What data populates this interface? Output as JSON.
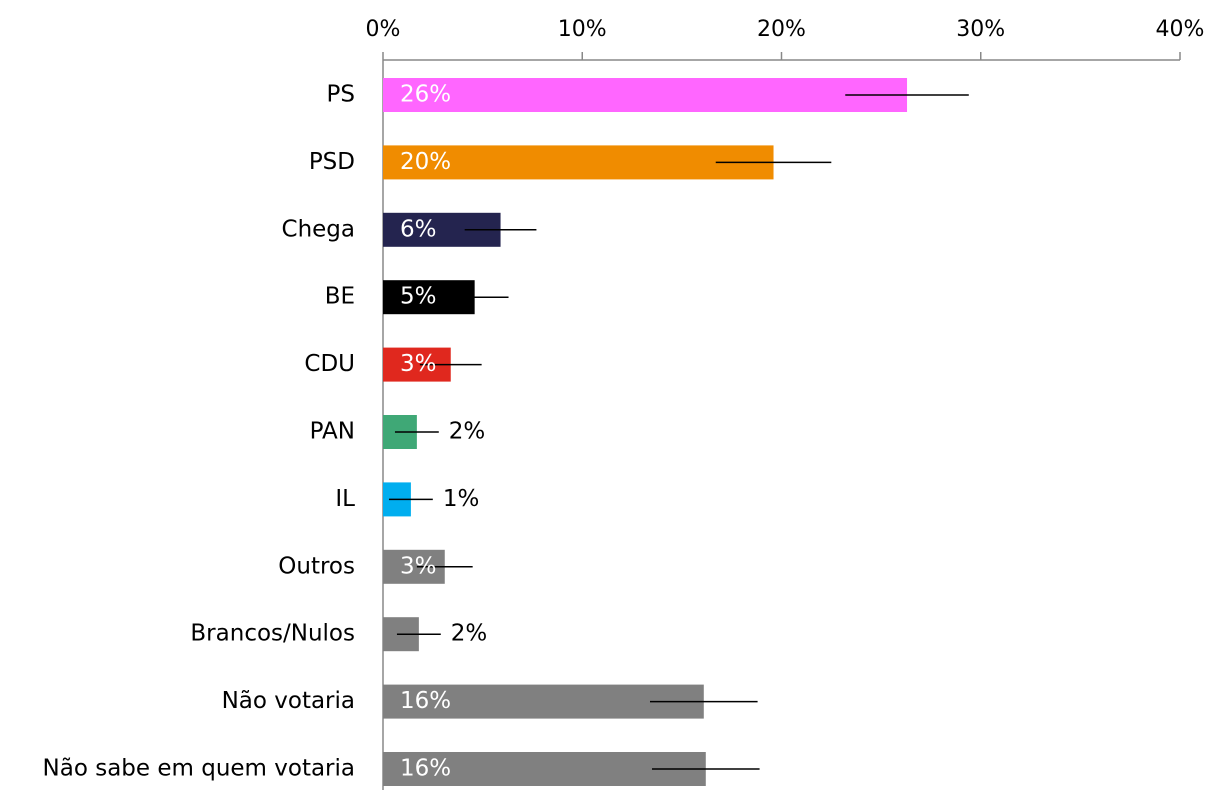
{
  "chart_data": {
    "type": "hbar",
    "categories": [
      "PS",
      "PSD",
      "Chega",
      "BE",
      "CDU",
      "PAN",
      "IL",
      "Outros",
      "Brancos/Nulos",
      "Não votaria",
      "Não sabe em quem votaria"
    ],
    "values": [
      26.3,
      19.6,
      5.9,
      4.6,
      3.4,
      1.7,
      1.4,
      3.1,
      1.8,
      16.1,
      16.2
    ],
    "value_labels": [
      "26%",
      "20%",
      "6%",
      "5%",
      "3%",
      "2%",
      "1%",
      "3%",
      "2%",
      "16%",
      "16%"
    ],
    "errors": [
      3.1,
      2.9,
      1.8,
      1.7,
      1.55,
      1.1,
      1.1,
      1.4,
      1.1,
      2.7,
      2.7
    ],
    "colors": [
      "#ff66ff",
      "#f08c00",
      "#24244f",
      "#000000",
      "#e0281e",
      "#3fa876",
      "#00aeef",
      "#808080",
      "#808080",
      "#808080",
      "#808080"
    ],
    "xlim": [
      0,
      40
    ],
    "xticks": [
      {
        "value": 0,
        "label": "0%"
      },
      {
        "value": 10,
        "label": "10%"
      },
      {
        "value": 20,
        "label": "20%"
      },
      {
        "value": 30,
        "label": "30%"
      },
      {
        "value": 40,
        "label": "40%"
      }
    ]
  }
}
